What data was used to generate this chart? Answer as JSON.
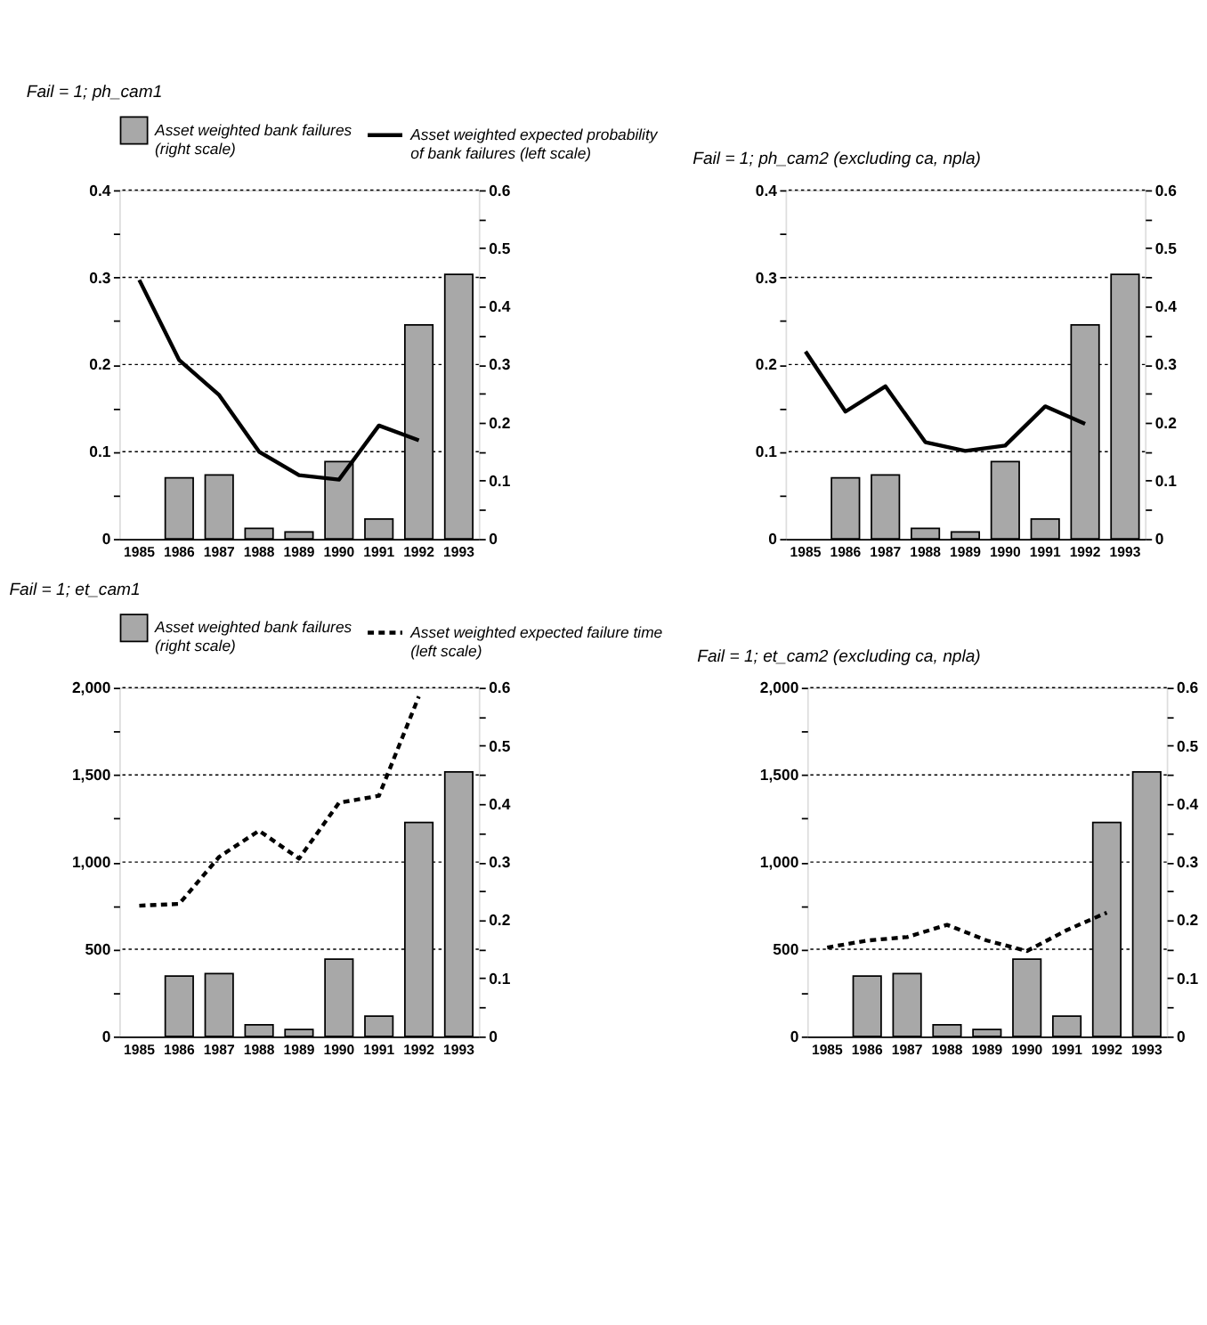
{
  "chart_data": [
    {
      "type": "bar",
      "title": "Fail = 1;    ph_cam1",
      "legend": "top",
      "grid": "y",
      "categories": [
        "1985",
        "1986",
        "1987",
        "1988",
        "1989",
        "1990",
        "1991",
        "1992",
        "1993"
      ],
      "series": [
        {
          "name": "Asset weighted bank failures\n(right scale)",
          "type": "bar",
          "axis": "y2",
          "color": "#a8a8a8",
          "values": [
            null,
            0.105,
            0.11,
            0.018,
            0.012,
            0.133,
            0.034,
            0.368,
            0.455
          ]
        },
        {
          "name": "Asset weighted expected probability\nof bank  failures  (left scale)",
          "type": "line",
          "axis": "y",
          "color": "#000000",
          "line_style": "solid",
          "values": [
            0.297,
            0.205,
            0.165,
            0.1,
            0.073,
            0.068,
            0.13,
            0.113,
            null
          ]
        }
      ],
      "ylim": [
        0,
        0.4
      ],
      "yticks": [
        0,
        {
          "value": 0.05,
          "label": null
        },
        0.1,
        {
          "value": 0.15,
          "label": null
        },
        0.2,
        {
          "value": 0.25,
          "label": null
        },
        0.3,
        {
          "value": 0.35,
          "label": null
        },
        0.4
      ],
      "y2lim": [
        0,
        0.6
      ],
      "y2ticks": [
        0,
        {
          "value": 0.05,
          "label": null
        },
        0.1,
        {
          "value": 0.15,
          "label": null
        },
        0.2,
        {
          "value": 0.25,
          "label": null
        },
        0.3,
        {
          "value": 0.35,
          "label": null
        },
        0.4,
        {
          "value": 0.45,
          "label": null
        },
        0.5,
        {
          "value": 0.55,
          "label": null
        },
        0.6
      ]
    },
    {
      "type": "bar",
      "title": "Fail = 1;    ph_cam2 (excluding ca, npla)",
      "grid": "y",
      "categories": [
        "1985",
        "1986",
        "1987",
        "1988",
        "1989",
        "1990",
        "1991",
        "1992",
        "1993"
      ],
      "series": [
        {
          "type": "bar",
          "axis": "y2",
          "color": "#a8a8a8",
          "values": [
            null,
            0.105,
            0.11,
            0.018,
            0.012,
            0.133,
            0.034,
            0.368,
            0.455
          ]
        },
        {
          "type": "line",
          "axis": "y",
          "color": "#000000",
          "line_style": "solid",
          "values": [
            0.215,
            0.146,
            0.175,
            0.111,
            0.101,
            0.107,
            0.152,
            0.132,
            null
          ]
        }
      ],
      "ylim": [
        0,
        0.4
      ],
      "yticks": [
        0,
        {
          "value": 0.05,
          "label": null
        },
        0.1,
        {
          "value": 0.15,
          "label": null
        },
        0.2,
        {
          "value": 0.25,
          "label": null
        },
        0.3,
        {
          "value": 0.35,
          "label": null
        },
        0.4
      ],
      "y2lim": [
        0,
        0.6
      ],
      "y2ticks": [
        0,
        {
          "value": 0.05,
          "label": null
        },
        0.1,
        {
          "value": 0.15,
          "label": null
        },
        0.2,
        {
          "value": 0.25,
          "label": null
        },
        0.3,
        {
          "value": 0.35,
          "label": null
        },
        0.4,
        {
          "value": 0.45,
          "label": null
        },
        0.5,
        {
          "value": 0.55,
          "label": null
        },
        0.6
      ]
    },
    {
      "type": "bar",
      "title": "Fail = 1;    et_cam1",
      "legend": "top",
      "grid": "y",
      "categories": [
        "1985",
        "1986",
        "1987",
        "1988",
        "1989",
        "1990",
        "1991",
        "1992",
        "1993"
      ],
      "series": [
        {
          "name": "Asset weighted bank failures\n(right scale)",
          "type": "bar",
          "axis": "y2",
          "color": "#a8a8a8",
          "values": [
            null,
            0.104,
            0.108,
            0.02,
            0.012,
            0.133,
            0.035,
            0.368,
            0.455
          ]
        },
        {
          "name": "Asset weighted expected failure time\n(left scale)",
          "type": "line",
          "axis": "y",
          "color": "#000000",
          "line_style": "dashed",
          "values": [
            750,
            760,
            1030,
            1180,
            1020,
            1340,
            1380,
            1950,
            null
          ]
        }
      ],
      "ylim": [
        0,
        2000
      ],
      "yticks": [
        0,
        {
          "value": 250,
          "label": null
        },
        500,
        {
          "value": 750,
          "label": null
        },
        {
          "value": 1000,
          "label": "1,000"
        },
        {
          "value": 1250,
          "label": null
        },
        {
          "value": 1500,
          "label": "1,500"
        },
        {
          "value": 1750,
          "label": null
        },
        {
          "value": 2000,
          "label": "2,000"
        }
      ],
      "y2lim": [
        0,
        0.6
      ],
      "y2ticks": [
        0,
        {
          "value": 0.05,
          "label": null
        },
        0.1,
        {
          "value": 0.15,
          "label": null
        },
        0.2,
        {
          "value": 0.25,
          "label": null
        },
        0.3,
        {
          "value": 0.35,
          "label": null
        },
        0.4,
        {
          "value": 0.45,
          "label": null
        },
        0.5,
        {
          "value": 0.55,
          "label": null
        },
        0.6
      ]
    },
    {
      "type": "bar",
      "title": "Fail = 1;    et_cam2 (excluding ca, npla)",
      "grid": "y",
      "categories": [
        "1985",
        "1986",
        "1987",
        "1988",
        "1989",
        "1990",
        "1991",
        "1992",
        "1993"
      ],
      "series": [
        {
          "type": "bar",
          "axis": "y2",
          "color": "#a8a8a8",
          "values": [
            null,
            0.104,
            0.108,
            0.02,
            0.012,
            0.133,
            0.035,
            0.368,
            0.455
          ]
        },
        {
          "type": "line",
          "axis": "y",
          "color": "#000000",
          "line_style": "dashed",
          "values": [
            510,
            550,
            570,
            640,
            550,
            490,
            610,
            710,
            null
          ]
        }
      ],
      "ylim": [
        0,
        2000
      ],
      "yticks": [
        0,
        {
          "value": 250,
          "label": null
        },
        500,
        {
          "value": 750,
          "label": null
        },
        {
          "value": 1000,
          "label": "1,000"
        },
        {
          "value": 1250,
          "label": null
        },
        {
          "value": 1500,
          "label": "1,500"
        },
        {
          "value": 1750,
          "label": null
        },
        {
          "value": 2000,
          "label": "2,000"
        }
      ],
      "y2lim": [
        0,
        0.6
      ],
      "y2ticks": [
        0,
        {
          "value": 0.05,
          "label": null
        },
        0.1,
        {
          "value": 0.15,
          "label": null
        },
        0.2,
        {
          "value": 0.25,
          "label": null
        },
        0.3,
        {
          "value": 0.35,
          "label": null
        },
        0.4,
        {
          "value": 0.45,
          "label": null
        },
        0.5,
        {
          "value": 0.55,
          "label": null
        },
        0.6
      ]
    }
  ]
}
